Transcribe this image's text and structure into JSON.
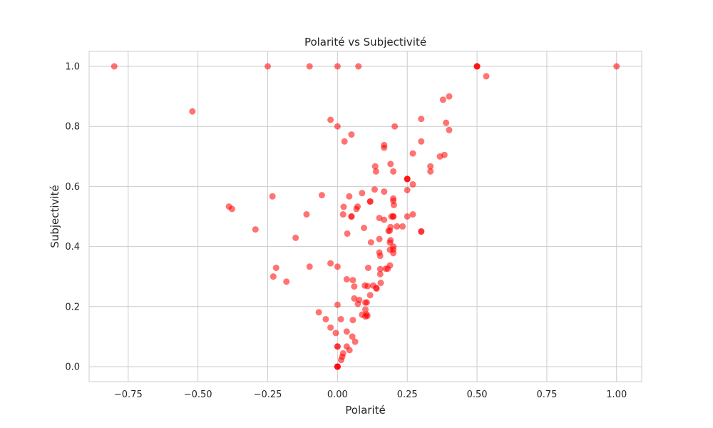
{
  "chart_data": {
    "type": "scatter",
    "title": "Polarité vs Subjectivité",
    "xlabel": "Polarité",
    "ylabel": "Subjectivité",
    "xlim": [
      -0.89,
      1.09
    ],
    "ylim": [
      -0.05,
      1.05
    ],
    "xticks": [
      -0.75,
      -0.5,
      -0.25,
      0.0,
      0.25,
      0.5,
      0.75,
      1.0
    ],
    "yticks": [
      0.0,
      0.2,
      0.4,
      0.6,
      0.8,
      1.0
    ],
    "xtick_labels": [
      "−0.75",
      "−0.50",
      "−0.25",
      "0.00",
      "0.25",
      "0.50",
      "0.75",
      "1.00"
    ],
    "ytick_labels": [
      "0.0",
      "0.2",
      "0.4",
      "0.6",
      "0.8",
      "1.0"
    ],
    "grid": true,
    "marker_color": "#ff0000",
    "marker_alpha": 0.55,
    "points": [
      [
        -0.8,
        1.0
      ],
      [
        -0.25,
        1.0
      ],
      [
        -0.1,
        1.0
      ],
      [
        0.0,
        1.0
      ],
      [
        0.075,
        1.0
      ],
      [
        0.5,
        1.0
      ],
      [
        0.5,
        1.0
      ],
      [
        0.5,
        1.0
      ],
      [
        1.0,
        1.0
      ],
      [
        0.533,
        0.967
      ],
      [
        -0.52,
        0.85
      ],
      [
        0.4,
        0.9
      ],
      [
        0.378,
        0.889
      ],
      [
        -0.025,
        0.822
      ],
      [
        0.3,
        0.825
      ],
      [
        0.389,
        0.812
      ],
      [
        0.0,
        0.8
      ],
      [
        0.205,
        0.8
      ],
      [
        0.4,
        0.788
      ],
      [
        0.05,
        0.773
      ],
      [
        0.025,
        0.75
      ],
      [
        0.3,
        0.75
      ],
      [
        0.167,
        0.738
      ],
      [
        0.167,
        0.729
      ],
      [
        0.27,
        0.71
      ],
      [
        0.383,
        0.705
      ],
      [
        0.367,
        0.7
      ],
      [
        0.19,
        0.675
      ],
      [
        0.333,
        0.667
      ],
      [
        0.135,
        0.667
      ],
      [
        0.138,
        0.65
      ],
      [
        0.2,
        0.65
      ],
      [
        0.333,
        0.65
      ],
      [
        0.25,
        0.625
      ],
      [
        0.25,
        0.625
      ],
      [
        0.25,
        0.625
      ],
      [
        0.27,
        0.607
      ],
      [
        0.133,
        0.59
      ],
      [
        0.25,
        0.588
      ],
      [
        0.167,
        0.583
      ],
      [
        0.088,
        0.578
      ],
      [
        -0.233,
        0.567
      ],
      [
        -0.056,
        0.571
      ],
      [
        0.042,
        0.567
      ],
      [
        0.2,
        0.56
      ],
      [
        0.2,
        0.552
      ],
      [
        0.117,
        0.55
      ],
      [
        0.117,
        0.55
      ],
      [
        0.202,
        0.538
      ],
      [
        0.022,
        0.532
      ],
      [
        -0.389,
        0.533
      ],
      [
        -0.378,
        0.525
      ],
      [
        0.072,
        0.533
      ],
      [
        0.068,
        0.525
      ],
      [
        0.05,
        0.5
      ],
      [
        0.05,
        0.5
      ],
      [
        0.02,
        0.507
      ],
      [
        -0.111,
        0.507
      ],
      [
        0.15,
        0.495
      ],
      [
        0.2,
        0.5
      ],
      [
        0.2,
        0.5
      ],
      [
        0.193,
        0.5
      ],
      [
        0.25,
        0.5
      ],
      [
        0.27,
        0.507
      ],
      [
        0.167,
        0.489
      ],
      [
        0.213,
        0.467
      ],
      [
        0.233,
        0.467
      ],
      [
        0.19,
        0.465
      ],
      [
        0.187,
        0.453
      ],
      [
        0.095,
        0.462
      ],
      [
        -0.294,
        0.457
      ],
      [
        0.183,
        0.452
      ],
      [
        0.3,
        0.45
      ],
      [
        0.3,
        0.45
      ],
      [
        0.035,
        0.443
      ],
      [
        -0.15,
        0.429
      ],
      [
        0.15,
        0.425
      ],
      [
        0.19,
        0.421
      ],
      [
        0.12,
        0.414
      ],
      [
        0.188,
        0.413
      ],
      [
        0.2,
        0.4
      ],
      [
        0.2,
        0.39
      ],
      [
        0.188,
        0.389
      ],
      [
        0.2,
        0.378
      ],
      [
        0.15,
        0.38
      ],
      [
        0.153,
        0.369
      ],
      [
        -0.025,
        0.344
      ],
      [
        0.188,
        0.337
      ],
      [
        -0.1,
        0.333
      ],
      [
        0.0,
        0.333
      ],
      [
        0.11,
        0.329
      ],
      [
        0.153,
        0.325
      ],
      [
        0.18,
        0.326
      ],
      [
        0.173,
        0.326
      ],
      [
        -0.22,
        0.329
      ],
      [
        0.153,
        0.308
      ],
      [
        -0.23,
        0.3
      ],
      [
        -0.183,
        0.283
      ],
      [
        0.033,
        0.291
      ],
      [
        0.055,
        0.288
      ],
      [
        0.155,
        0.279
      ],
      [
        0.128,
        0.27
      ],
      [
        0.098,
        0.27
      ],
      [
        0.139,
        0.262
      ],
      [
        0.108,
        0.268
      ],
      [
        0.06,
        0.267
      ],
      [
        0.14,
        0.26
      ],
      [
        0.117,
        0.238
      ],
      [
        0.06,
        0.227
      ],
      [
        0.078,
        0.222
      ],
      [
        0.1,
        0.213
      ],
      [
        0.073,
        0.209
      ],
      [
        0.0,
        0.206
      ],
      [
        0.105,
        0.214
      ],
      [
        0.1,
        0.19
      ],
      [
        0.104,
        0.174
      ],
      [
        -0.067,
        0.181
      ],
      [
        0.088,
        0.173
      ],
      [
        0.107,
        0.169
      ],
      [
        0.1,
        0.167
      ],
      [
        0.012,
        0.158
      ],
      [
        0.055,
        0.155
      ],
      [
        -0.042,
        0.158
      ],
      [
        -0.025,
        0.13
      ],
      [
        0.033,
        0.117
      ],
      [
        -0.006,
        0.112
      ],
      [
        0.053,
        0.1
      ],
      [
        0.063,
        0.083
      ],
      [
        0.0,
        0.067
      ],
      [
        0.0,
        0.067
      ],
      [
        0.033,
        0.067
      ],
      [
        0.043,
        0.055
      ],
      [
        0.02,
        0.044
      ],
      [
        0.017,
        0.033
      ],
      [
        0.013,
        0.022
      ],
      [
        0.0,
        0.0
      ],
      [
        0.0,
        0.0
      ],
      [
        0.0,
        0.0
      ],
      [
        0.0,
        0.0
      ]
    ]
  }
}
